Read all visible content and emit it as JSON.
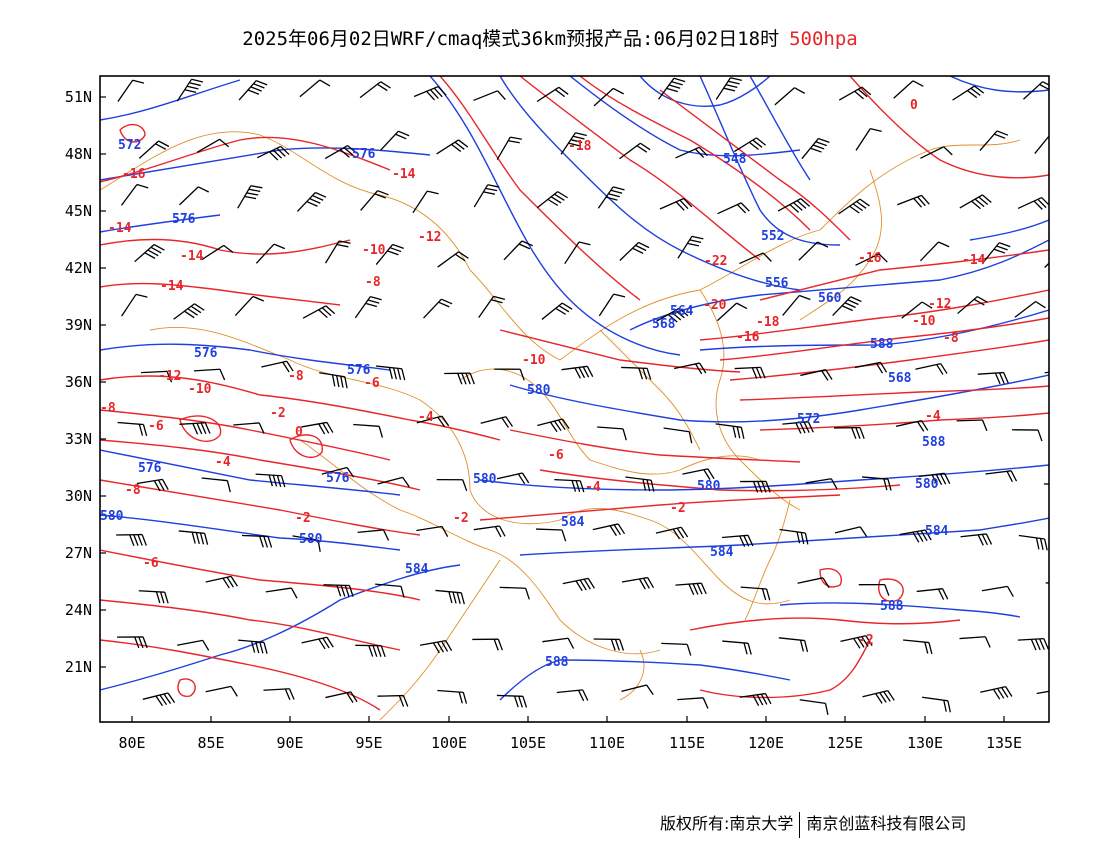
{
  "header": {
    "title": "2025年06月02日WRF/cmaq模式36km预报产品:06月02日18时",
    "level": "500hpa"
  },
  "footer": {
    "left": "版权所有:南京大学",
    "right": "南京创蓝科技有限公司"
  },
  "axes": {
    "lon_ticks": [
      "80E",
      "85E",
      "90E",
      "95E",
      "100E",
      "105E",
      "110E",
      "115E",
      "120E",
      "125E",
      "130E",
      "135E"
    ],
    "lat_ticks": [
      "51N",
      "48N",
      "45N",
      "42N",
      "39N",
      "36N",
      "33N",
      "30N",
      "27N",
      "24N",
      "21N"
    ]
  },
  "colors": {
    "height_contour": "#1f3fe0",
    "temp_contour": "#e8262a",
    "boundary": "#e0902a",
    "wind_barb": "#000000",
    "level_text": "#e8262a"
  },
  "height_labels": [
    "572",
    "576",
    "576",
    "576",
    "576",
    "576",
    "576",
    "580",
    "580",
    "580",
    "580",
    "580",
    "580",
    "584",
    "584",
    "584",
    "584",
    "548",
    "552",
    "556",
    "560",
    "564",
    "568",
    "568",
    "572",
    "588",
    "588",
    "588",
    "588"
  ],
  "temp_labels": [
    "-16",
    "-14",
    "-14",
    "-14",
    "-14",
    "-12",
    "-12",
    "-10",
    "-10",
    "-10",
    "-8",
    "-8",
    "-8",
    "-8",
    "-6",
    "-6",
    "-6",
    "-6",
    "-4",
    "-4",
    "-4",
    "-2",
    "-2",
    "-2",
    "-2",
    "-2",
    "0",
    "0",
    "-18",
    "-18",
    "-16",
    "-16",
    "-14",
    "-12",
    "-10",
    "-8",
    "-4",
    "-20",
    "-22"
  ]
}
